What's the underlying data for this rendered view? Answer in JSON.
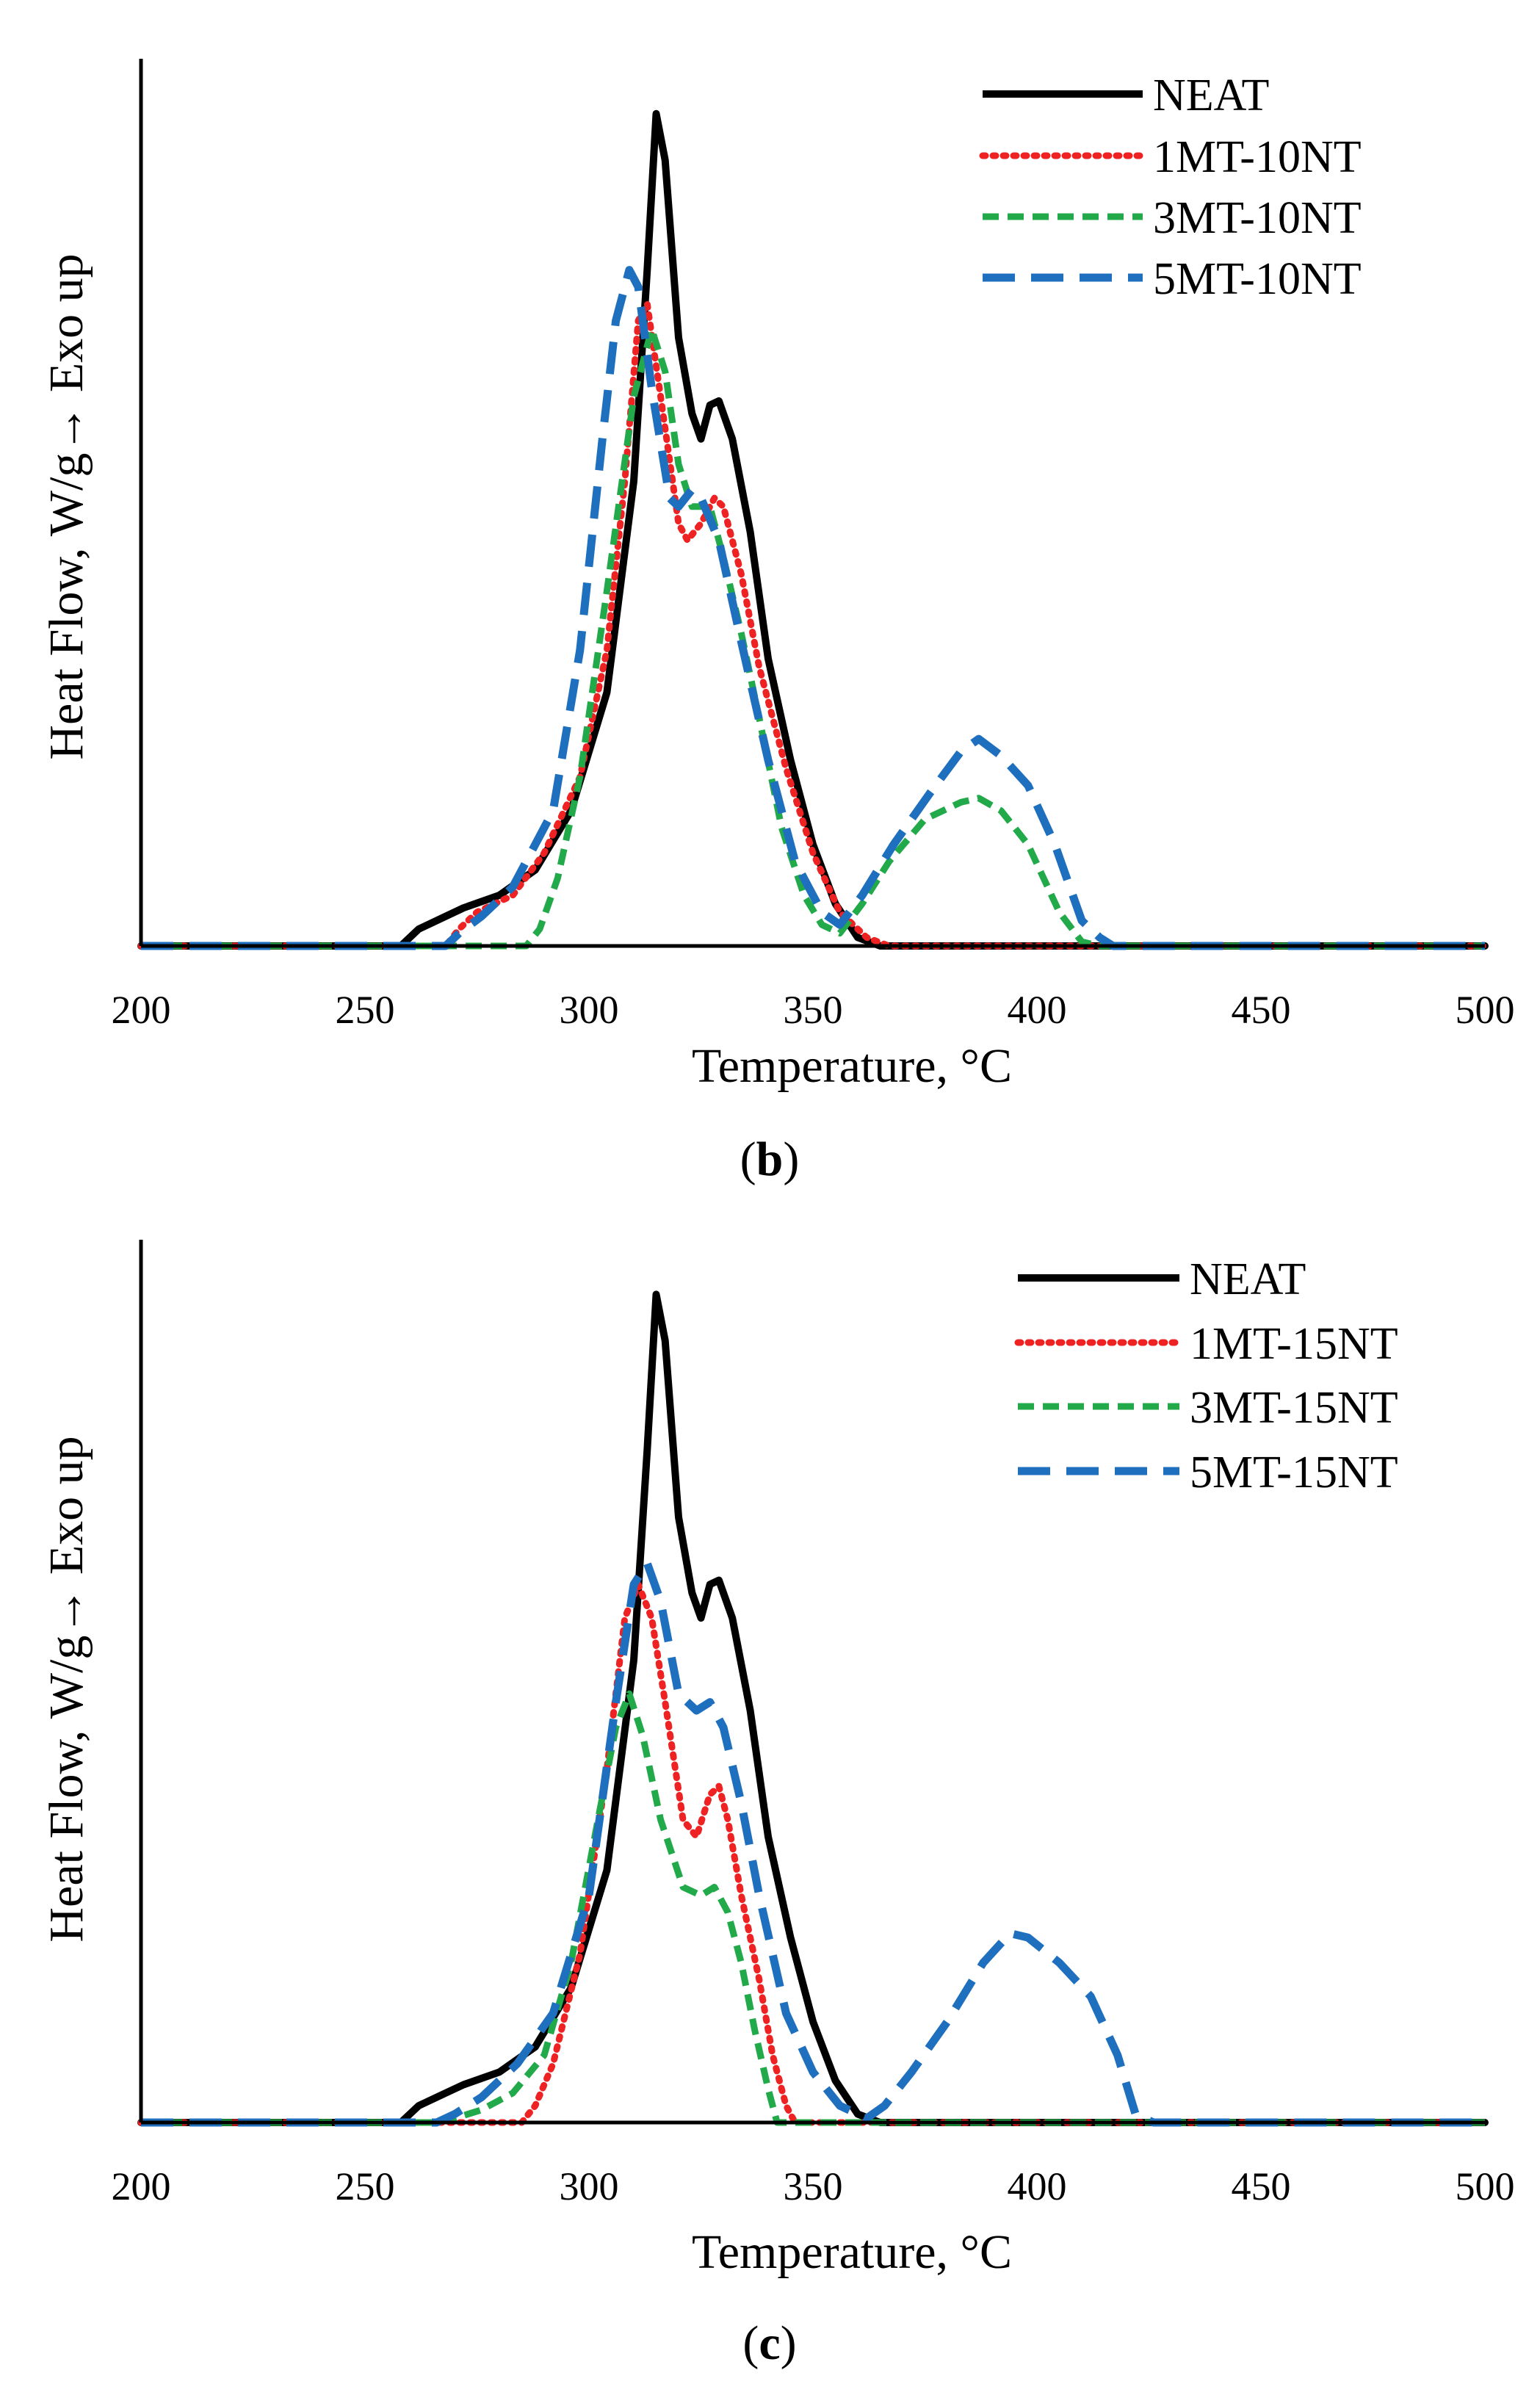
{
  "colors": {
    "NEAT": "#000000",
    "1MT": "#ee2222",
    "3MT": "#22aa4a",
    "5MT": "#1f6fbf"
  },
  "chart_data": [
    {
      "type": "line",
      "panel_label": "b",
      "xlabel": "Temperature, °C",
      "ylabel": "Heat Flow,  W/g→ Exo up",
      "xlim": [
        200,
        500
      ],
      "ylim": [
        0,
        1.05
      ],
      "x_ticks": [
        "200",
        "250",
        "300",
        "350",
        "400",
        "450",
        "500"
      ],
      "legend_position": "top-right",
      "series": [
        {
          "name": "NEAT",
          "style": "solid",
          "color": "#000000",
          "points": [
            [
              200,
              0
            ],
            [
              258,
              0
            ],
            [
              262,
              0.02
            ],
            [
              268,
              0.035
            ],
            [
              272,
              0.045
            ],
            [
              280,
              0.06
            ],
            [
              288,
              0.09
            ],
            [
              296,
              0.16
            ],
            [
              304,
              0.3
            ],
            [
              310,
              0.55
            ],
            [
              313,
              0.8
            ],
            [
              315,
              0.985
            ],
            [
              317,
              0.93
            ],
            [
              320,
              0.72
            ],
            [
              323,
              0.63
            ],
            [
              325,
              0.6
            ],
            [
              327,
              0.64
            ],
            [
              329,
              0.645
            ],
            [
              332,
              0.6
            ],
            [
              336,
              0.49
            ],
            [
              340,
              0.34
            ],
            [
              345,
              0.22
            ],
            [
              350,
              0.12
            ],
            [
              355,
              0.05
            ],
            [
              360,
              0.01
            ],
            [
              365,
              0
            ],
            [
              500,
              0
            ]
          ]
        },
        {
          "name": "1MT-10NT",
          "style": "dotted",
          "color": "#ee2222",
          "points": [
            [
              200,
              0
            ],
            [
              268,
              0
            ],
            [
              271,
              0.02
            ],
            [
              275,
              0.04
            ],
            [
              283,
              0.06
            ],
            [
              290,
              0.11
            ],
            [
              298,
              0.2
            ],
            [
              304,
              0.35
            ],
            [
              308,
              0.55
            ],
            [
              311,
              0.74
            ],
            [
              313,
              0.76
            ],
            [
              316,
              0.65
            ],
            [
              320,
              0.5
            ],
            [
              322,
              0.48
            ],
            [
              325,
              0.5
            ],
            [
              328,
              0.53
            ],
            [
              330,
              0.52
            ],
            [
              334,
              0.44
            ],
            [
              338,
              0.33
            ],
            [
              344,
              0.21
            ],
            [
              350,
              0.11
            ],
            [
              356,
              0.04
            ],
            [
              362,
              0.01
            ],
            [
              367,
              0
            ],
            [
              500,
              0
            ]
          ]
        },
        {
          "name": "3MT-10NT",
          "style": "dashed",
          "color": "#22aa4a",
          "points": [
            [
              200,
              0
            ],
            [
              286,
              0
            ],
            [
              289,
              0.02
            ],
            [
              293,
              0.08
            ],
            [
              298,
              0.2
            ],
            [
              304,
              0.42
            ],
            [
              310,
              0.65
            ],
            [
              314,
              0.73
            ],
            [
              317,
              0.68
            ],
            [
              320,
              0.57
            ],
            [
              323,
              0.52
            ],
            [
              327,
              0.52
            ],
            [
              330,
              0.46
            ],
            [
              334,
              0.37
            ],
            [
              338,
              0.27
            ],
            [
              343,
              0.14
            ],
            [
              348,
              0.06
            ],
            [
              352,
              0.025
            ],
            [
              356,
              0.015
            ],
            [
              361,
              0.05
            ],
            [
              367,
              0.1
            ],
            [
              375,
              0.15
            ],
            [
              383,
              0.17
            ],
            [
              387,
              0.175
            ],
            [
              392,
              0.16
            ],
            [
              398,
              0.12
            ],
            [
              405,
              0.04
            ],
            [
              410,
              0.005
            ],
            [
              414,
              0
            ],
            [
              500,
              0
            ]
          ]
        },
        {
          "name": "5MT-10NT",
          "style": "longdash",
          "color": "#1f6fbf",
          "points": [
            [
              200,
              0
            ],
            [
              268,
              0
            ],
            [
              271,
              0.015
            ],
            [
              276,
              0.035
            ],
            [
              283,
              0.07
            ],
            [
              292,
              0.16
            ],
            [
              298,
              0.35
            ],
            [
              303,
              0.6
            ],
            [
              306,
              0.74
            ],
            [
              309,
              0.8
            ],
            [
              311,
              0.78
            ],
            [
              314,
              0.66
            ],
            [
              318,
              0.53
            ],
            [
              320,
              0.52
            ],
            [
              323,
              0.54
            ],
            [
              325,
              0.53
            ],
            [
              329,
              0.48
            ],
            [
              334,
              0.36
            ],
            [
              340,
              0.22
            ],
            [
              346,
              0.1
            ],
            [
              352,
              0.04
            ],
            [
              356,
              0.025
            ],
            [
              361,
              0.06
            ],
            [
              368,
              0.12
            ],
            [
              376,
              0.18
            ],
            [
              383,
              0.23
            ],
            [
              387,
              0.245
            ],
            [
              392,
              0.225
            ],
            [
              398,
              0.19
            ],
            [
              404,
              0.12
            ],
            [
              410,
              0.03
            ],
            [
              414,
              0.01
            ],
            [
              417,
              0
            ],
            [
              500,
              0
            ]
          ]
        }
      ]
    },
    {
      "type": "line",
      "panel_label": "c",
      "xlabel": "Temperature, °C",
      "ylabel": "Heat Flow,  W/g→ Exo up",
      "xlim": [
        200,
        500
      ],
      "ylim": [
        0,
        1.05
      ],
      "x_ticks": [
        "200",
        "250",
        "300",
        "350",
        "400",
        "450",
        "500"
      ],
      "legend_position": "top-right",
      "series": [
        {
          "name": "NEAT",
          "style": "solid",
          "color": "#000000",
          "points": [
            [
              200,
              0
            ],
            [
              258,
              0
            ],
            [
              262,
              0.02
            ],
            [
              268,
              0.035
            ],
            [
              272,
              0.045
            ],
            [
              280,
              0.06
            ],
            [
              288,
              0.09
            ],
            [
              296,
              0.16
            ],
            [
              304,
              0.3
            ],
            [
              310,
              0.55
            ],
            [
              313,
              0.8
            ],
            [
              315,
              0.985
            ],
            [
              317,
              0.93
            ],
            [
              320,
              0.72
            ],
            [
              323,
              0.63
            ],
            [
              325,
              0.6
            ],
            [
              327,
              0.64
            ],
            [
              329,
              0.645
            ],
            [
              332,
              0.6
            ],
            [
              336,
              0.49
            ],
            [
              340,
              0.34
            ],
            [
              345,
              0.22
            ],
            [
              350,
              0.12
            ],
            [
              355,
              0.05
            ],
            [
              360,
              0.01
            ],
            [
              365,
              0
            ],
            [
              500,
              0
            ]
          ]
        },
        {
          "name": "1MT-15NT",
          "style": "dotted",
          "color": "#ee2222",
          "points": [
            [
              200,
              0
            ],
            [
              285,
              0
            ],
            [
              288,
              0.02
            ],
            [
              292,
              0.07
            ],
            [
              298,
              0.2
            ],
            [
              304,
              0.42
            ],
            [
              308,
              0.6
            ],
            [
              311,
              0.64
            ],
            [
              314,
              0.6
            ],
            [
              317,
              0.5
            ],
            [
              321,
              0.36
            ],
            [
              324,
              0.34
            ],
            [
              327,
              0.39
            ],
            [
              329,
              0.4
            ],
            [
              331,
              0.36
            ],
            [
              334,
              0.27
            ],
            [
              338,
              0.17
            ],
            [
              341,
              0.08
            ],
            [
              344,
              0.02
            ],
            [
              346,
              0
            ],
            [
              500,
              0
            ]
          ]
        },
        {
          "name": "3MT-15NT",
          "style": "dashed",
          "color": "#22aa4a",
          "points": [
            [
              200,
              0
            ],
            [
              266,
              0
            ],
            [
              270,
              0.005
            ],
            [
              276,
              0.015
            ],
            [
              283,
              0.035
            ],
            [
              290,
              0.08
            ],
            [
              296,
              0.19
            ],
            [
              302,
              0.36
            ],
            [
              306,
              0.47
            ],
            [
              309,
              0.51
            ],
            [
              312,
              0.46
            ],
            [
              316,
              0.36
            ],
            [
              321,
              0.28
            ],
            [
              325,
              0.27
            ],
            [
              328,
              0.28
            ],
            [
              331,
              0.25
            ],
            [
              334,
              0.19
            ],
            [
              337,
              0.11
            ],
            [
              340,
              0.04
            ],
            [
              342,
              0
            ],
            [
              500,
              0
            ]
          ]
        },
        {
          "name": "5MT-15NT",
          "style": "longdash",
          "color": "#1f6fbf",
          "points": [
            [
              200,
              0
            ],
            [
              266,
              0
            ],
            [
              270,
              0.01
            ],
            [
              276,
              0.03
            ],
            [
              284,
              0.07
            ],
            [
              292,
              0.13
            ],
            [
              300,
              0.27
            ],
            [
              306,
              0.5
            ],
            [
              310,
              0.64
            ],
            [
              313,
              0.665
            ],
            [
              316,
              0.62
            ],
            [
              320,
              0.51
            ],
            [
              324,
              0.49
            ],
            [
              327,
              0.5
            ],
            [
              330,
              0.47
            ],
            [
              334,
              0.38
            ],
            [
              338,
              0.27
            ],
            [
              344,
              0.13
            ],
            [
              350,
              0.06
            ],
            [
              356,
              0.02
            ],
            [
              362,
              0.005
            ],
            [
              366,
              0.02
            ],
            [
              372,
              0.06
            ],
            [
              380,
              0.12
            ],
            [
              388,
              0.19
            ],
            [
              394,
              0.225
            ],
            [
              398,
              0.22
            ],
            [
              405,
              0.19
            ],
            [
              412,
              0.15
            ],
            [
              418,
              0.08
            ],
            [
              422,
              0.01
            ],
            [
              426,
              0
            ],
            [
              500,
              0
            ]
          ]
        }
      ]
    }
  ]
}
